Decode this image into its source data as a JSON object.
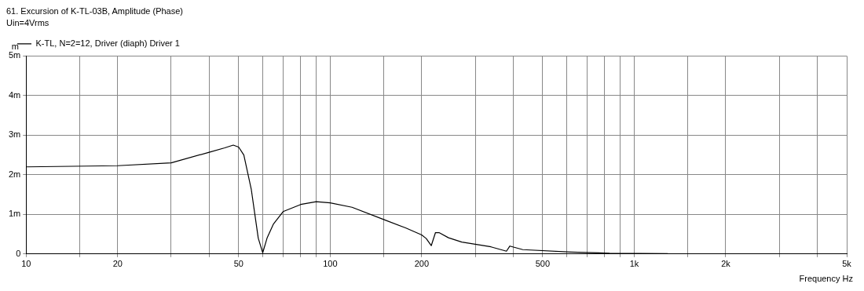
{
  "chart_data": {
    "type": "line",
    "title": "61. Excursion of K-TL-03B, Amplitude (Phase)",
    "subtitle": "Uin=4Vrms",
    "xlabel": "Frequency Hz",
    "ylabel": "m",
    "log": "x",
    "grid": true,
    "legend": "top left",
    "marker": "none",
    "line_style": "solid",
    "xlim": [
      10,
      5000
    ],
    "ylim": [
      0,
      5
    ],
    "xticks": [
      10,
      {
        "value": 15,
        "label": null
      },
      20,
      {
        "value": 30,
        "label": null
      },
      {
        "value": 40,
        "label": null
      },
      50,
      {
        "value": 60,
        "label": null
      },
      {
        "value": 70,
        "label": null
      },
      {
        "value": 80,
        "label": null
      },
      {
        "value": 90,
        "label": null
      },
      100,
      {
        "value": 150,
        "label": null
      },
      200,
      {
        "value": 300,
        "label": null
      },
      {
        "value": 400,
        "label": null
      },
      500,
      {
        "value": 600,
        "label": null
      },
      {
        "value": 700,
        "label": null
      },
      {
        "value": 800,
        "label": null
      },
      {
        "value": 900,
        "label": null
      },
      {
        "value": 1000,
        "label": "1k"
      },
      {
        "value": 1500,
        "label": null
      },
      {
        "value": 2000,
        "label": "2k"
      },
      {
        "value": 3000,
        "label": null
      },
      {
        "value": 4000,
        "label": null
      },
      {
        "value": 5000,
        "label": "5k"
      }
    ],
    "yticks": [
      0,
      {
        "value": 1,
        "label": "1m"
      },
      {
        "value": 2,
        "label": "2m"
      },
      {
        "value": 3,
        "label": "3m"
      },
      {
        "value": 4,
        "label": "4m"
      },
      {
        "value": 5,
        "label": "5m"
      }
    ],
    "series": [
      {
        "name": "K-TL, N=2=12, Driver (diaph) Driver 1",
        "color": "#000000",
        "x": [
          10,
          20,
          30,
          40,
          45,
          48,
          50,
          52,
          55,
          58,
          60,
          62,
          65,
          70,
          80,
          90,
          100,
          118,
          150,
          177,
          200,
          207,
          215,
          222,
          228,
          245,
          271,
          338,
          380,
          390,
          430,
          620,
          830,
          1290
        ],
        "values": [
          2.2,
          2.23,
          2.3,
          2.57,
          2.68,
          2.75,
          2.7,
          2.5,
          1.64,
          0.4,
          0.03,
          0.4,
          0.75,
          1.07,
          1.25,
          1.32,
          1.29,
          1.18,
          0.87,
          0.66,
          0.48,
          0.39,
          0.21,
          0.54,
          0.54,
          0.41,
          0.3,
          0.18,
          0.07,
          0.2,
          0.11,
          0.05,
          0.02,
          0.01
        ]
      }
    ]
  }
}
